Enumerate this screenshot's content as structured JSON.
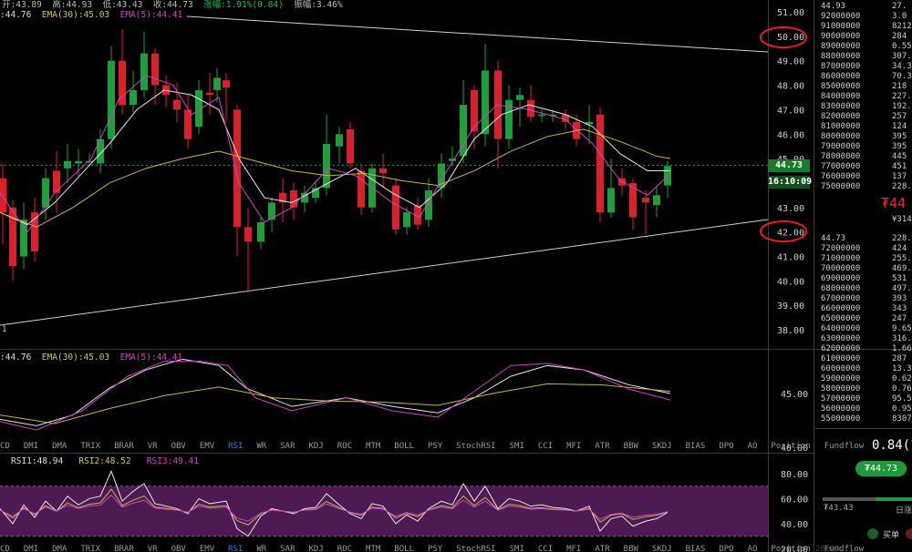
{
  "header": {
    "open": "开:43.89",
    "high": "高:44.93",
    "low": "低:43.43",
    "close": "收:44.73",
    "change": "涨幅:1.91%(0.84)",
    "amplitude": "振幅:3.46%"
  },
  "main_legend": {
    "ema_a": ":44.76",
    "ema30": "EMA(30):45.03",
    "ema5": "EMA(5):44.41"
  },
  "main_axis": [
    "51.00",
    "50.00",
    "49.00",
    "48.00",
    "47.00",
    "46.00",
    "45.00",
    "44.73",
    "43.00",
    "42.00",
    "41.00",
    "40.00",
    "39.00",
    "38.00"
  ],
  "main_axis_extra": "1",
  "current_price_tag": "44.73",
  "countdown_tag": "16:10:09",
  "circled_levels": [
    "50.00",
    "42.00"
  ],
  "sub1_legend": {
    "a": ":44.76",
    "ema30": "EMA(30):45.03",
    "ema5": "EMA(5):44.41"
  },
  "sub1_axis": [
    "45.00",
    "40.00"
  ],
  "indicator_tabs": [
    "CD",
    "DMI",
    "DMA",
    "TRIX",
    "BRAR",
    "VR",
    "OBV",
    "EMV",
    "RSI",
    "WR",
    "SAR",
    "KDJ",
    "ROC",
    "MTM",
    "BOLL",
    "PSY",
    "StochRSI",
    "SMI",
    "CCI",
    "MFI",
    "ATR",
    "BBW",
    "SKDJ",
    "BIAS",
    "DPO",
    "AO",
    "Position",
    "Fundflow"
  ],
  "active_tab": "RSI",
  "sub2_legend": {
    "rsi1": "RSI1:48.94",
    "rsi2": "RSI2:48.52",
    "rsi3": "RSI3:49.41"
  },
  "sub2_axis": [
    "80.00",
    "60.00",
    "40.00",
    "20.00"
  ],
  "orderbook": {
    "top_price": "44.93",
    "top_qty": "27.",
    "asks": [
      [
        "92000000",
        "3.0"
      ],
      [
        "91000000",
        "8212"
      ],
      [
        "90000000",
        "284"
      ],
      [
        "89000000",
        "0.55"
      ],
      [
        "88000000",
        "307."
      ],
      [
        "87000000",
        "34.3"
      ],
      [
        "86000000",
        "70.3"
      ],
      [
        "85000000",
        "218"
      ],
      [
        "84000000",
        "227."
      ],
      [
        "83000000",
        "192."
      ],
      [
        "82000000",
        "257"
      ],
      [
        "81000000",
        "124"
      ],
      [
        "80000000",
        "395"
      ],
      [
        "79000000",
        "395"
      ],
      [
        "78000000",
        "445"
      ],
      [
        "77000000",
        "451"
      ],
      [
        "76000000",
        "137"
      ],
      [
        "75000000",
        "228."
      ]
    ],
    "mid_price": "₮44",
    "mid_sub": "¥314",
    "bids_price": "44.73",
    "bids_top_qty": "228.",
    "bids": [
      [
        "72000000",
        "424"
      ],
      [
        "71000000",
        "255."
      ],
      [
        "70000000",
        "469."
      ],
      [
        "69000000",
        "531"
      ],
      [
        "68000000",
        "497."
      ],
      [
        "67000000",
        "393"
      ],
      [
        "66000000",
        "343"
      ],
      [
        "65000000",
        "247"
      ],
      [
        "64000000",
        "9.65"
      ],
      [
        "63000000",
        "316."
      ],
      [
        "62000000",
        "1.66"
      ],
      [
        "61000000",
        "287"
      ],
      [
        "60000000",
        "13.3"
      ],
      [
        "59000000",
        "0.62"
      ],
      [
        "58000000",
        "0.76"
      ],
      [
        "57000000",
        "95.5"
      ],
      [
        "56000000",
        "0.95"
      ],
      [
        "55000000",
        "8307"
      ]
    ]
  },
  "ticker": {
    "change": "0.84(1",
    "price_pill": "₮44.73",
    "low_label": "₮43.43",
    "high_label": "日涨",
    "buy_label": "买单",
    "bottom_value": "20000"
  },
  "colors": {
    "up": "#1f9e3a",
    "down": "#d8222b",
    "ema_white": "#e6e6e6",
    "ema_yellow": "#c8b24a",
    "ema_pink": "#c54ac0",
    "rsi_band": "#5a1f5f",
    "circle": "#e02020",
    "accent_blue": "#3b7bd8"
  }
}
